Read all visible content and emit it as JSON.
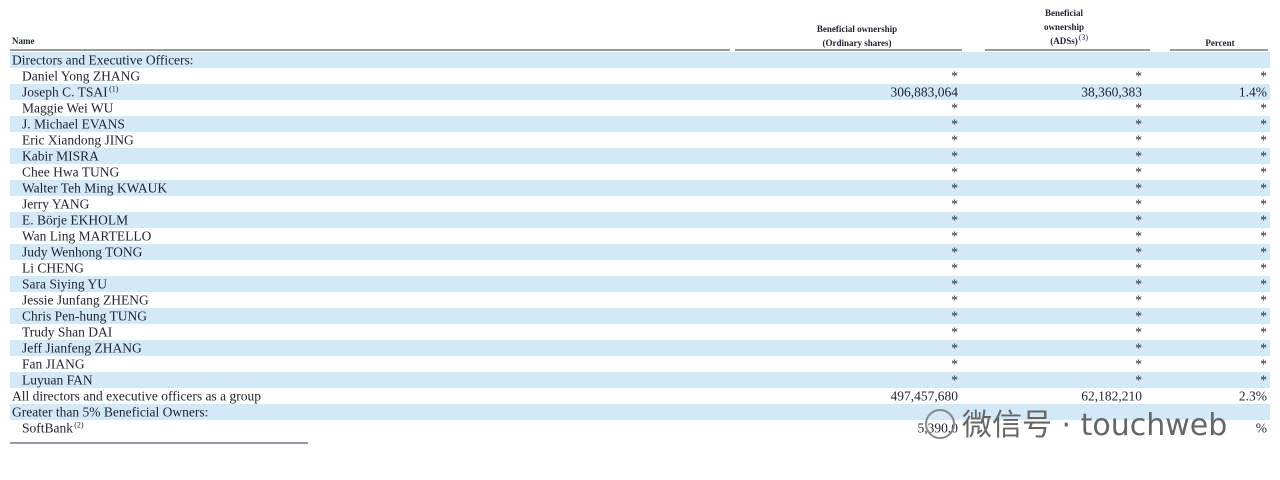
{
  "table": {
    "header": {
      "name": "Name",
      "ordinary": [
        "Beneficial ownership",
        "(Ordinary shares)"
      ],
      "ads": [
        "Beneficial",
        "ownership",
        "(ADSs)"
      ],
      "ads_note": "(3)",
      "percent": "Percent"
    },
    "groups": [
      {
        "heading": "Directors and Executive Officers:",
        "rows": [
          {
            "name": "Daniel Yong ZHANG",
            "ordinary": "*",
            "ads": "*",
            "percent": "*"
          },
          {
            "name": "Joseph C. TSAI",
            "note": "(1)",
            "ordinary": "306,883,064",
            "ads": "38,360,383",
            "percent": "1.4%"
          },
          {
            "name": "Maggie Wei WU",
            "ordinary": "*",
            "ads": "*",
            "percent": "*"
          },
          {
            "name": "J. Michael EVANS",
            "ordinary": "*",
            "ads": "*",
            "percent": "*"
          },
          {
            "name": "Eric Xiandong JING",
            "ordinary": "*",
            "ads": "*",
            "percent": "*"
          },
          {
            "name": "Kabir MISRA",
            "ordinary": "*",
            "ads": "*",
            "percent": "*"
          },
          {
            "name": "Chee Hwa TUNG",
            "ordinary": "*",
            "ads": "*",
            "percent": "*"
          },
          {
            "name": "Walter Teh Ming KWAUK",
            "ordinary": "*",
            "ads": "*",
            "percent": "*"
          },
          {
            "name": "Jerry YANG",
            "ordinary": "*",
            "ads": "*",
            "percent": "*"
          },
          {
            "name": "E. Börje EKHOLM",
            "ordinary": "*",
            "ads": "*",
            "percent": "*"
          },
          {
            "name": "Wan Ling MARTELLO",
            "ordinary": "*",
            "ads": "*",
            "percent": "*"
          },
          {
            "name": "Judy Wenhong TONG",
            "ordinary": "*",
            "ads": "*",
            "percent": "*"
          },
          {
            "name": "Li CHENG",
            "ordinary": "*",
            "ads": "*",
            "percent": "*"
          },
          {
            "name": "Sara Siying YU",
            "ordinary": "*",
            "ads": "*",
            "percent": "*"
          },
          {
            "name": "Jessie Junfang ZHENG",
            "ordinary": "*",
            "ads": "*",
            "percent": "*"
          },
          {
            "name": "Chris Pen-hung TUNG",
            "ordinary": "*",
            "ads": "*",
            "percent": "*"
          },
          {
            "name": "Trudy Shan DAI",
            "ordinary": "*",
            "ads": "*",
            "percent": "*"
          },
          {
            "name": "Jeff Jianfeng ZHANG",
            "ordinary": "*",
            "ads": "*",
            "percent": "*"
          },
          {
            "name": "Fan JIANG",
            "ordinary": "*",
            "ads": "*",
            "percent": "*"
          },
          {
            "name": "Luyuan FAN",
            "ordinary": "*",
            "ads": "*",
            "percent": "*"
          }
        ],
        "total": {
          "name": "All directors and executive officers as a group",
          "ordinary": "497,457,680",
          "ads": "62,182,210",
          "percent": "2.3%"
        }
      },
      {
        "heading": "Greater than 5% Beneficial Owners:",
        "rows": [
          {
            "name": "SoftBank",
            "note": "(2)",
            "ordinary": "5,390,0",
            "ads": "",
            "percent": "%"
          }
        ]
      }
    ]
  },
  "watermark": "微信号 · touchweb"
}
